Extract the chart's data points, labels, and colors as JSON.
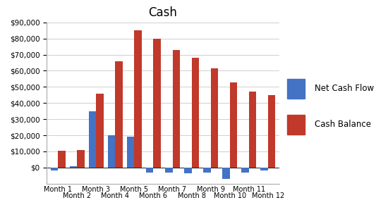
{
  "title": "Cash",
  "categories": [
    "Month 1",
    "Month 2",
    "Month 3",
    "Month 4",
    "Month 5",
    "Month 6",
    "Month 7",
    "Month 8",
    "Month 9",
    "Month 10",
    "Month 11",
    "Month 12"
  ],
  "net_cash_flow": [
    -2000,
    1000,
    35000,
    20000,
    19000,
    -3000,
    -3000,
    -3500,
    -3000,
    -7000,
    -3000,
    -2000
  ],
  "cash_balance": [
    10500,
    11000,
    46000,
    66000,
    85000,
    80000,
    73000,
    68000,
    61500,
    53000,
    47000,
    45000
  ],
  "bar_color_blue": "#4472C4",
  "bar_color_red": "#C0392B",
  "legend_labels": [
    "Net Cash Flow",
    "Cash Balance"
  ],
  "ylim": [
    -10000,
    90000
  ],
  "yticks": [
    0,
    10000,
    20000,
    30000,
    40000,
    50000,
    60000,
    70000,
    80000,
    90000
  ],
  "background_color": "#FFFFFF",
  "grid_color": "#C8C8C8",
  "title_fontsize": 12,
  "bar_width": 0.38
}
